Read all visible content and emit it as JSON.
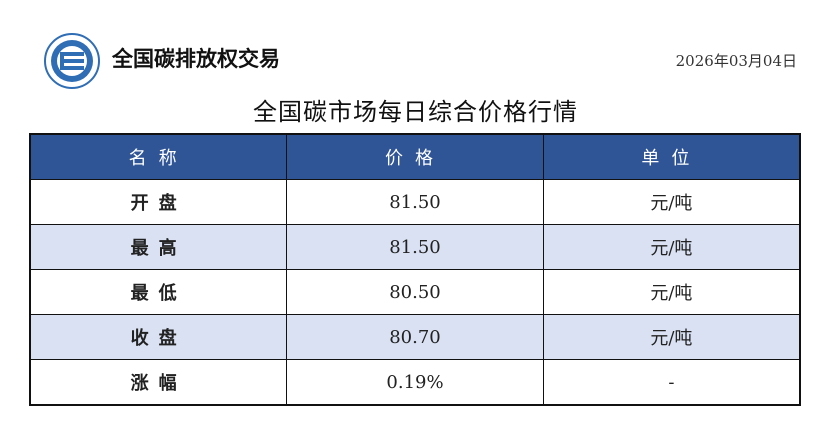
{
  "header": {
    "brand": "全国碳排放权交易",
    "date": "2026年03月04日",
    "logo_icon": "exchange-logo"
  },
  "title": "全国碳市场每日综合价格行情",
  "colors": {
    "header_bg": "#2F5597",
    "alt_row_bg": "#D9E1F2"
  },
  "table": {
    "columns": [
      "名称",
      "价格",
      "单位"
    ],
    "rows": [
      {
        "name": "开盘",
        "price": "81.50",
        "unit": "元/吨"
      },
      {
        "name": "最高",
        "price": "81.50",
        "unit": "元/吨"
      },
      {
        "name": "最低",
        "price": "80.50",
        "unit": "元/吨"
      },
      {
        "name": "收盘",
        "price": "80.70",
        "unit": "元/吨"
      },
      {
        "name": "涨幅",
        "price": "0.19%",
        "unit": "-"
      }
    ]
  }
}
